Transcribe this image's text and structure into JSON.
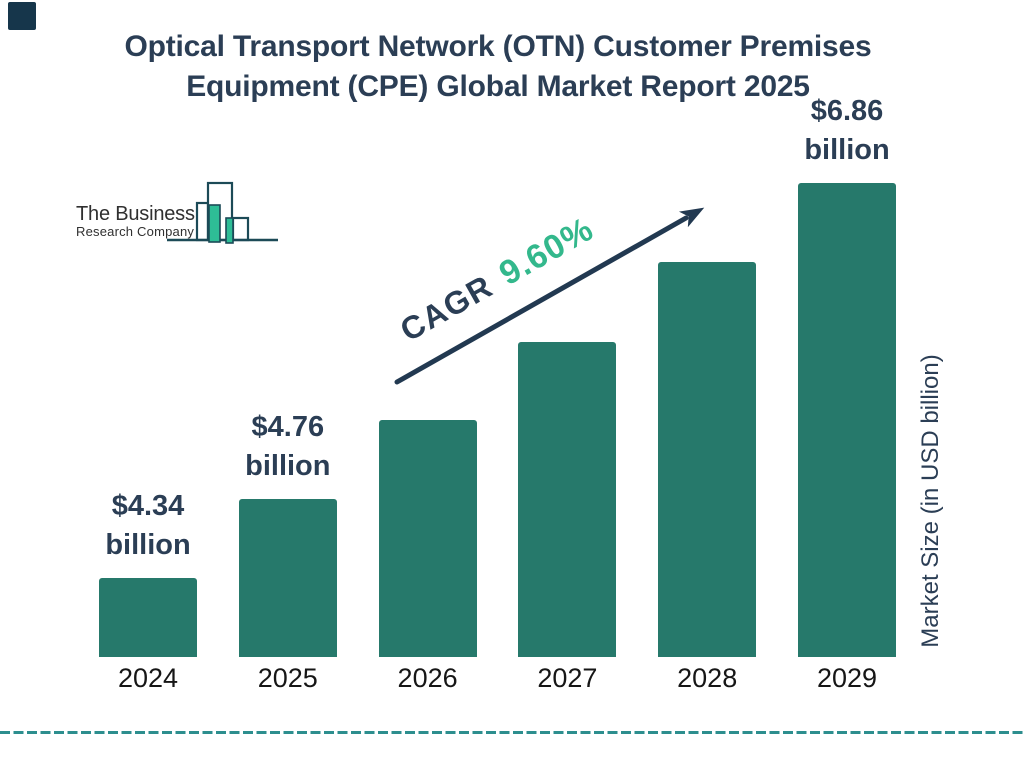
{
  "title": {
    "line1": "Optical Transport Network (OTN) Customer Premises",
    "line2": "Equipment (CPE) Global Market Report 2025"
  },
  "logo": {
    "line1": "The Business",
    "line2": "Research Company"
  },
  "cagr": {
    "label": "CAGR",
    "value": "9.60%"
  },
  "right_axis_label": "Market Size (in USD billion)",
  "colors": {
    "bar": "#26796B",
    "navy_text": "#2B3E55",
    "arrow": "#223951",
    "cagr_green": "#33B88C",
    "dashed_line": "#2D8E8E",
    "logo_mint": "#2EBD96",
    "logo_outline": "#1C4A57",
    "year_text": "#161616",
    "corner_marker": "#16364B"
  },
  "chart_data": {
    "type": "bar",
    "title": "Optical Transport Network (OTN) Customer Premises Equipment (CPE) Global Market Report 2025",
    "categories": [
      "2024",
      "2025",
      "2026",
      "2027",
      "2028",
      "2029"
    ],
    "values": [
      4.34,
      4.76,
      5.22,
      5.72,
      6.27,
      6.86
    ],
    "estimated_indices": [
      2,
      3,
      4
    ],
    "unit": "USD billion",
    "ylabel": "Market Size (in USD billion)",
    "cagr": "9.60%",
    "legend": "none",
    "grid": "off",
    "value_labels": [
      {
        "index": 0,
        "line1": "$4.34",
        "line2": "billion"
      },
      {
        "index": 1,
        "line1": "$4.76",
        "line2": "billion"
      },
      {
        "index": 5,
        "line1": "$6.86",
        "line2": "billion"
      }
    ]
  }
}
